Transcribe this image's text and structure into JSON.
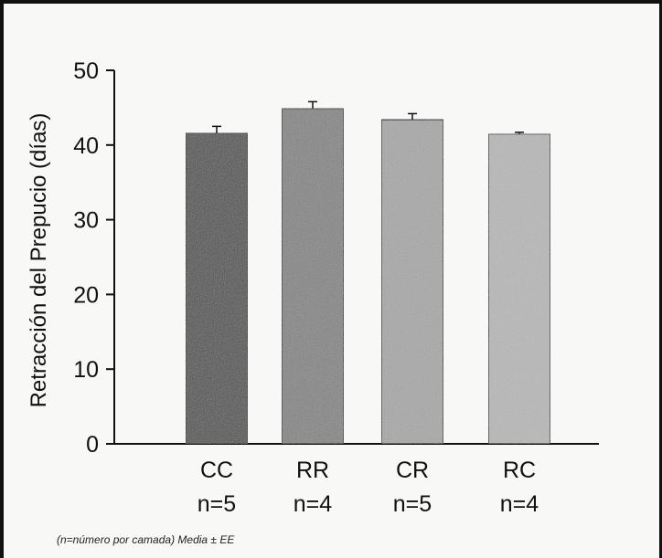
{
  "chart_data": {
    "type": "bar",
    "categories": [
      "CC",
      "RR",
      "CR",
      "RC"
    ],
    "sample_sizes": [
      "n=5",
      "n=4",
      "n=5",
      "n=4"
    ],
    "values": [
      41.6,
      44.9,
      43.4,
      41.5
    ],
    "errors": [
      0.9,
      0.9,
      0.8,
      0.2
    ],
    "bar_colors": [
      "#4e4e4e",
      "#838383",
      "#a7a7a7",
      "#b8b8b8"
    ],
    "ylabel": "Retracción del Prepucio (días)",
    "xlabel": "",
    "title": "",
    "ylim": [
      0,
      50
    ],
    "yticks": [
      0,
      10,
      20,
      30,
      40,
      50
    ],
    "grid": false,
    "legend": "none"
  },
  "footnote": "(n=número  por camada) Media ± EE"
}
